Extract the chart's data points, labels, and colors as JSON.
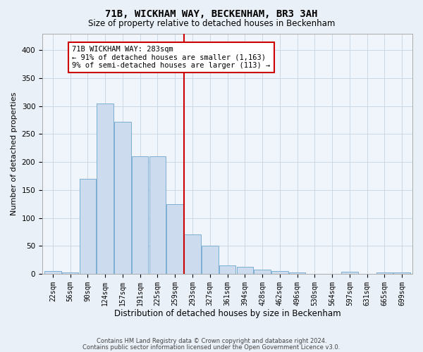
{
  "title": "71B, WICKHAM WAY, BECKENHAM, BR3 3AH",
  "subtitle": "Size of property relative to detached houses in Beckenham",
  "xlabel": "Distribution of detached houses by size in Beckenham",
  "ylabel": "Number of detached properties",
  "bin_labels": [
    "22sqm",
    "56sqm",
    "90sqm",
    "124sqm",
    "157sqm",
    "191sqm",
    "225sqm",
    "259sqm",
    "293sqm",
    "327sqm",
    "361sqm",
    "394sqm",
    "428sqm",
    "462sqm",
    "496sqm",
    "530sqm",
    "564sqm",
    "597sqm",
    "631sqm",
    "665sqm",
    "699sqm"
  ],
  "bar_heights": [
    5,
    3,
    170,
    305,
    272,
    210,
    210,
    125,
    70,
    50,
    15,
    13,
    8,
    5,
    3,
    0,
    0,
    4,
    0,
    3,
    2
  ],
  "property_bin_index": 8,
  "bar_color": "#ccdcee",
  "bar_edge_color": "#7bafd4",
  "vline_color": "#cc0000",
  "annotation_text": "71B WICKHAM WAY: 283sqm\n← 91% of detached houses are smaller (1,163)\n9% of semi-detached houses are larger (113) →",
  "footer1": "Contains HM Land Registry data © Crown copyright and database right 2024.",
  "footer2": "Contains public sector information licensed under the Open Government Licence v3.0.",
  "bg_color": "#eaf0f8",
  "plot_bg_color": "#f0f5fb",
  "grid_color": "#c5d3e0",
  "ylim": [
    0,
    430
  ],
  "yticks": [
    0,
    50,
    100,
    150,
    200,
    250,
    300,
    350,
    400
  ],
  "title_fontsize": 10,
  "subtitle_fontsize": 8.5,
  "ylabel_fontsize": 8,
  "xlabel_fontsize": 8.5,
  "tick_fontsize": 7,
  "annotation_fontsize": 7.5,
  "footer_fontsize": 6
}
